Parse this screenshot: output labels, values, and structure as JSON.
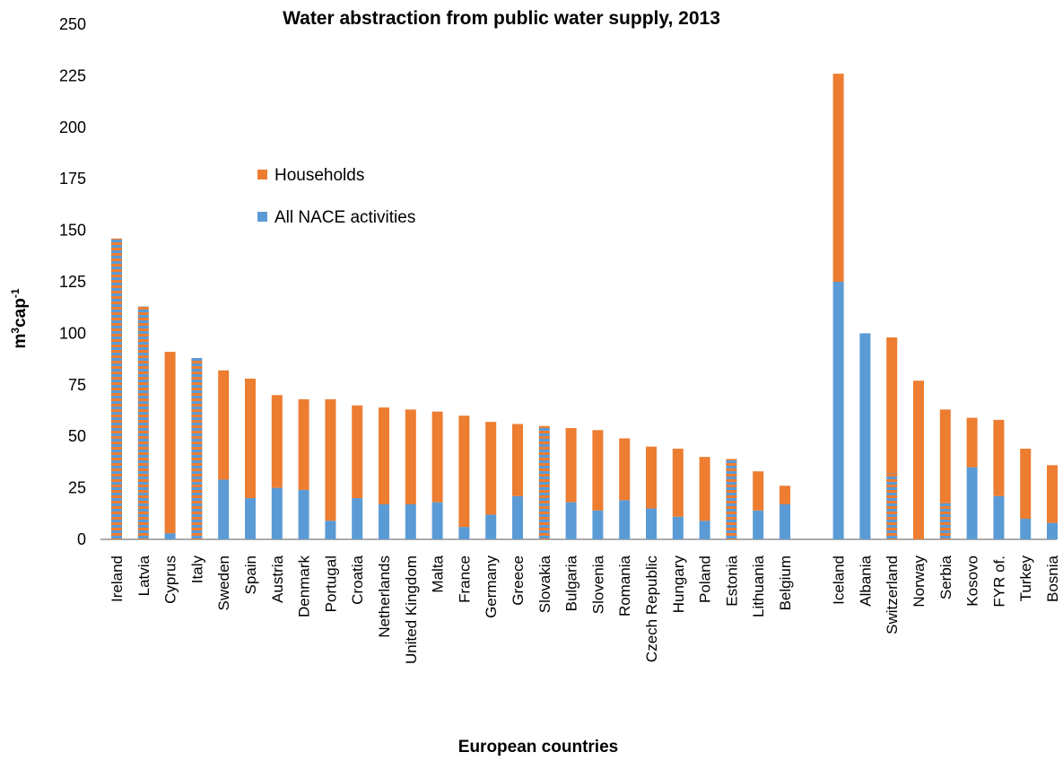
{
  "chart_data": {
    "type": "bar",
    "stacked": true,
    "title": "Water abstraction from public water supply, 2013",
    "xlabel": "European countries",
    "ylabel_base": "m",
    "ylabel_sup1": "3",
    "ylabel_mid": "cap",
    "ylabel_sup2": "-1",
    "ylim": [
      0,
      250
    ],
    "yticks": [
      0,
      25,
      50,
      75,
      100,
      125,
      150,
      175,
      200,
      225,
      250
    ],
    "grid": false,
    "legend_placement": "upper-left-center",
    "colors": {
      "households": "#ED7D31",
      "nace": "#5B9BD5"
    },
    "categories": [
      "Ireland",
      "Latvia",
      "Cyprus",
      "Italy",
      "Sweden",
      "Spain",
      "Austria",
      "Denmark",
      "Portugal",
      "Croatia",
      "Netherlands",
      "United Kingdom",
      "Malta",
      "France",
      "Germany",
      "Greece",
      "Slovakia",
      "Bulgaria",
      "Slovenia",
      "Romania",
      "Czech Republic",
      "Hungary",
      "Poland",
      "Estonia",
      "Lithuania",
      "Belgium",
      "",
      "Iceland",
      "Albania",
      "Switzerland",
      "Norway",
      "Serbia",
      "Kosovo",
      "FYR of.",
      "Turkey",
      "Bosnia"
    ],
    "hatched": [
      "Ireland",
      "Latvia",
      "Italy",
      "Slovakia",
      "Estonia"
    ],
    "partial_hatch": [
      "Switzerland",
      "Serbia"
    ],
    "series": [
      {
        "name": "All NACE activities",
        "values": [
          0,
          0,
          3,
          0,
          29,
          20,
          25,
          24,
          9,
          20,
          17,
          17,
          18,
          6,
          12,
          21,
          0,
          18,
          14,
          19,
          15,
          11,
          9,
          0,
          14,
          17,
          null,
          125,
          100,
          32,
          0,
          18,
          35,
          21,
          10,
          8
        ]
      },
      {
        "name": "Households",
        "values": [
          146,
          113,
          88,
          88,
          53,
          58,
          45,
          44,
          59,
          45,
          47,
          46,
          44,
          54,
          45,
          35,
          55,
          36,
          39,
          30,
          30,
          33,
          31,
          39,
          19,
          9,
          null,
          101,
          0,
          66,
          77,
          45,
          24,
          37,
          34,
          28
        ]
      }
    ]
  }
}
